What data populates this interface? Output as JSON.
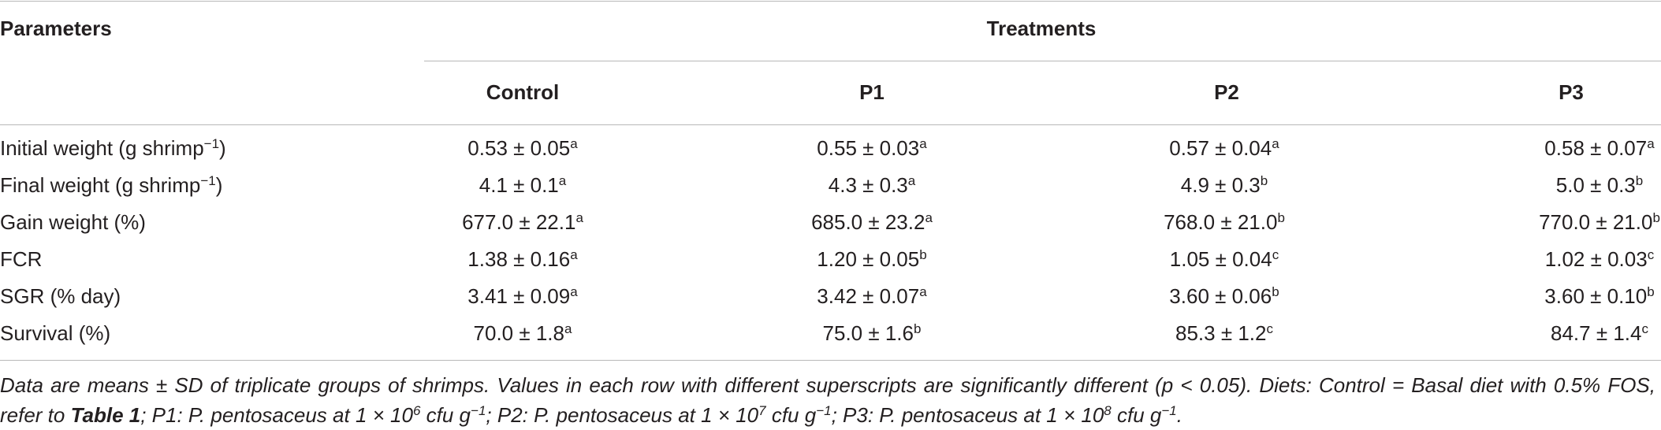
{
  "table": {
    "parameters_header": "Parameters",
    "treatments_header": "Treatments",
    "columns": [
      "Control",
      "P1",
      "P2",
      "P3"
    ],
    "rows": [
      {
        "label": {
          "before": "Initial weight (g shrimp",
          "sup": "−1",
          "after": ")"
        },
        "cells": [
          {
            "text": "0.53 ± 0.05",
            "sup": "a"
          },
          {
            "text": "0.55 ± 0.03",
            "sup": "a"
          },
          {
            "text": "0.57 ± 0.04",
            "sup": "a"
          },
          {
            "text": "0.58 ± 0.07",
            "sup": "a"
          }
        ]
      },
      {
        "label": {
          "before": "Final weight (g shrimp",
          "sup": "−1",
          "after": ")"
        },
        "cells": [
          {
            "text": "4.1 ± 0.1",
            "sup": "a"
          },
          {
            "text": "4.3 ± 0.3",
            "sup": "a"
          },
          {
            "text": "4.9 ± 0.3",
            "sup": "b"
          },
          {
            "text": "5.0 ± 0.3",
            "sup": "b"
          }
        ]
      },
      {
        "label": {
          "before": "Gain weight (%)"
        },
        "cells": [
          {
            "text": "677.0 ± 22.1",
            "sup": "a"
          },
          {
            "text": "685.0 ± 23.2",
            "sup": "a"
          },
          {
            "text": "768.0 ± 21.0",
            "sup": "b"
          },
          {
            "text": "770.0 ± 21.0",
            "sup": "b"
          }
        ]
      },
      {
        "label": {
          "before": "FCR"
        },
        "cells": [
          {
            "text": "1.38 ± 0.16",
            "sup": "a"
          },
          {
            "text": "1.20 ± 0.05",
            "sup": "b"
          },
          {
            "text": "1.05 ± 0.04",
            "sup": "c"
          },
          {
            "text": "1.02 ± 0.03",
            "sup": "c"
          }
        ]
      },
      {
        "label": {
          "before": "SGR (% day)"
        },
        "cells": [
          {
            "text": "3.41 ± 0.09",
            "sup": "a"
          },
          {
            "text": "3.42 ± 0.07",
            "sup": "a"
          },
          {
            "text": "3.60 ± 0.06",
            "sup": "b"
          },
          {
            "text": "3.60 ± 0.10",
            "sup": "b"
          }
        ]
      },
      {
        "label": {
          "before": "Survival (%)"
        },
        "cells": [
          {
            "text": "70.0 ± 1.8",
            "sup": "a"
          },
          {
            "text": "75.0 ± 1.6",
            "sup": "b"
          },
          {
            "text": "85.3 ± 1.2",
            "sup": "c"
          },
          {
            "text": "84.7 ± 1.4",
            "sup": "c"
          }
        ]
      }
    ]
  },
  "footnote": [
    "Data are means ± SD of triplicate groups of shrimps. Values in each row with different superscripts are significantly different (p < 0.05). Diets: Control = Basal diet with 0.5% FOS, refer to ",
    "Table 1",
    "; P1: P. pentosaceus at 1 × 10",
    "6",
    " cfu g",
    "−1",
    "; P2: P. pentosaceus at 1 × 10",
    "7",
    " cfu g",
    "−1",
    "; P3: P. pentosaceus at 1 × 10",
    "8",
    " cfu g",
    "−1",
    "."
  ]
}
